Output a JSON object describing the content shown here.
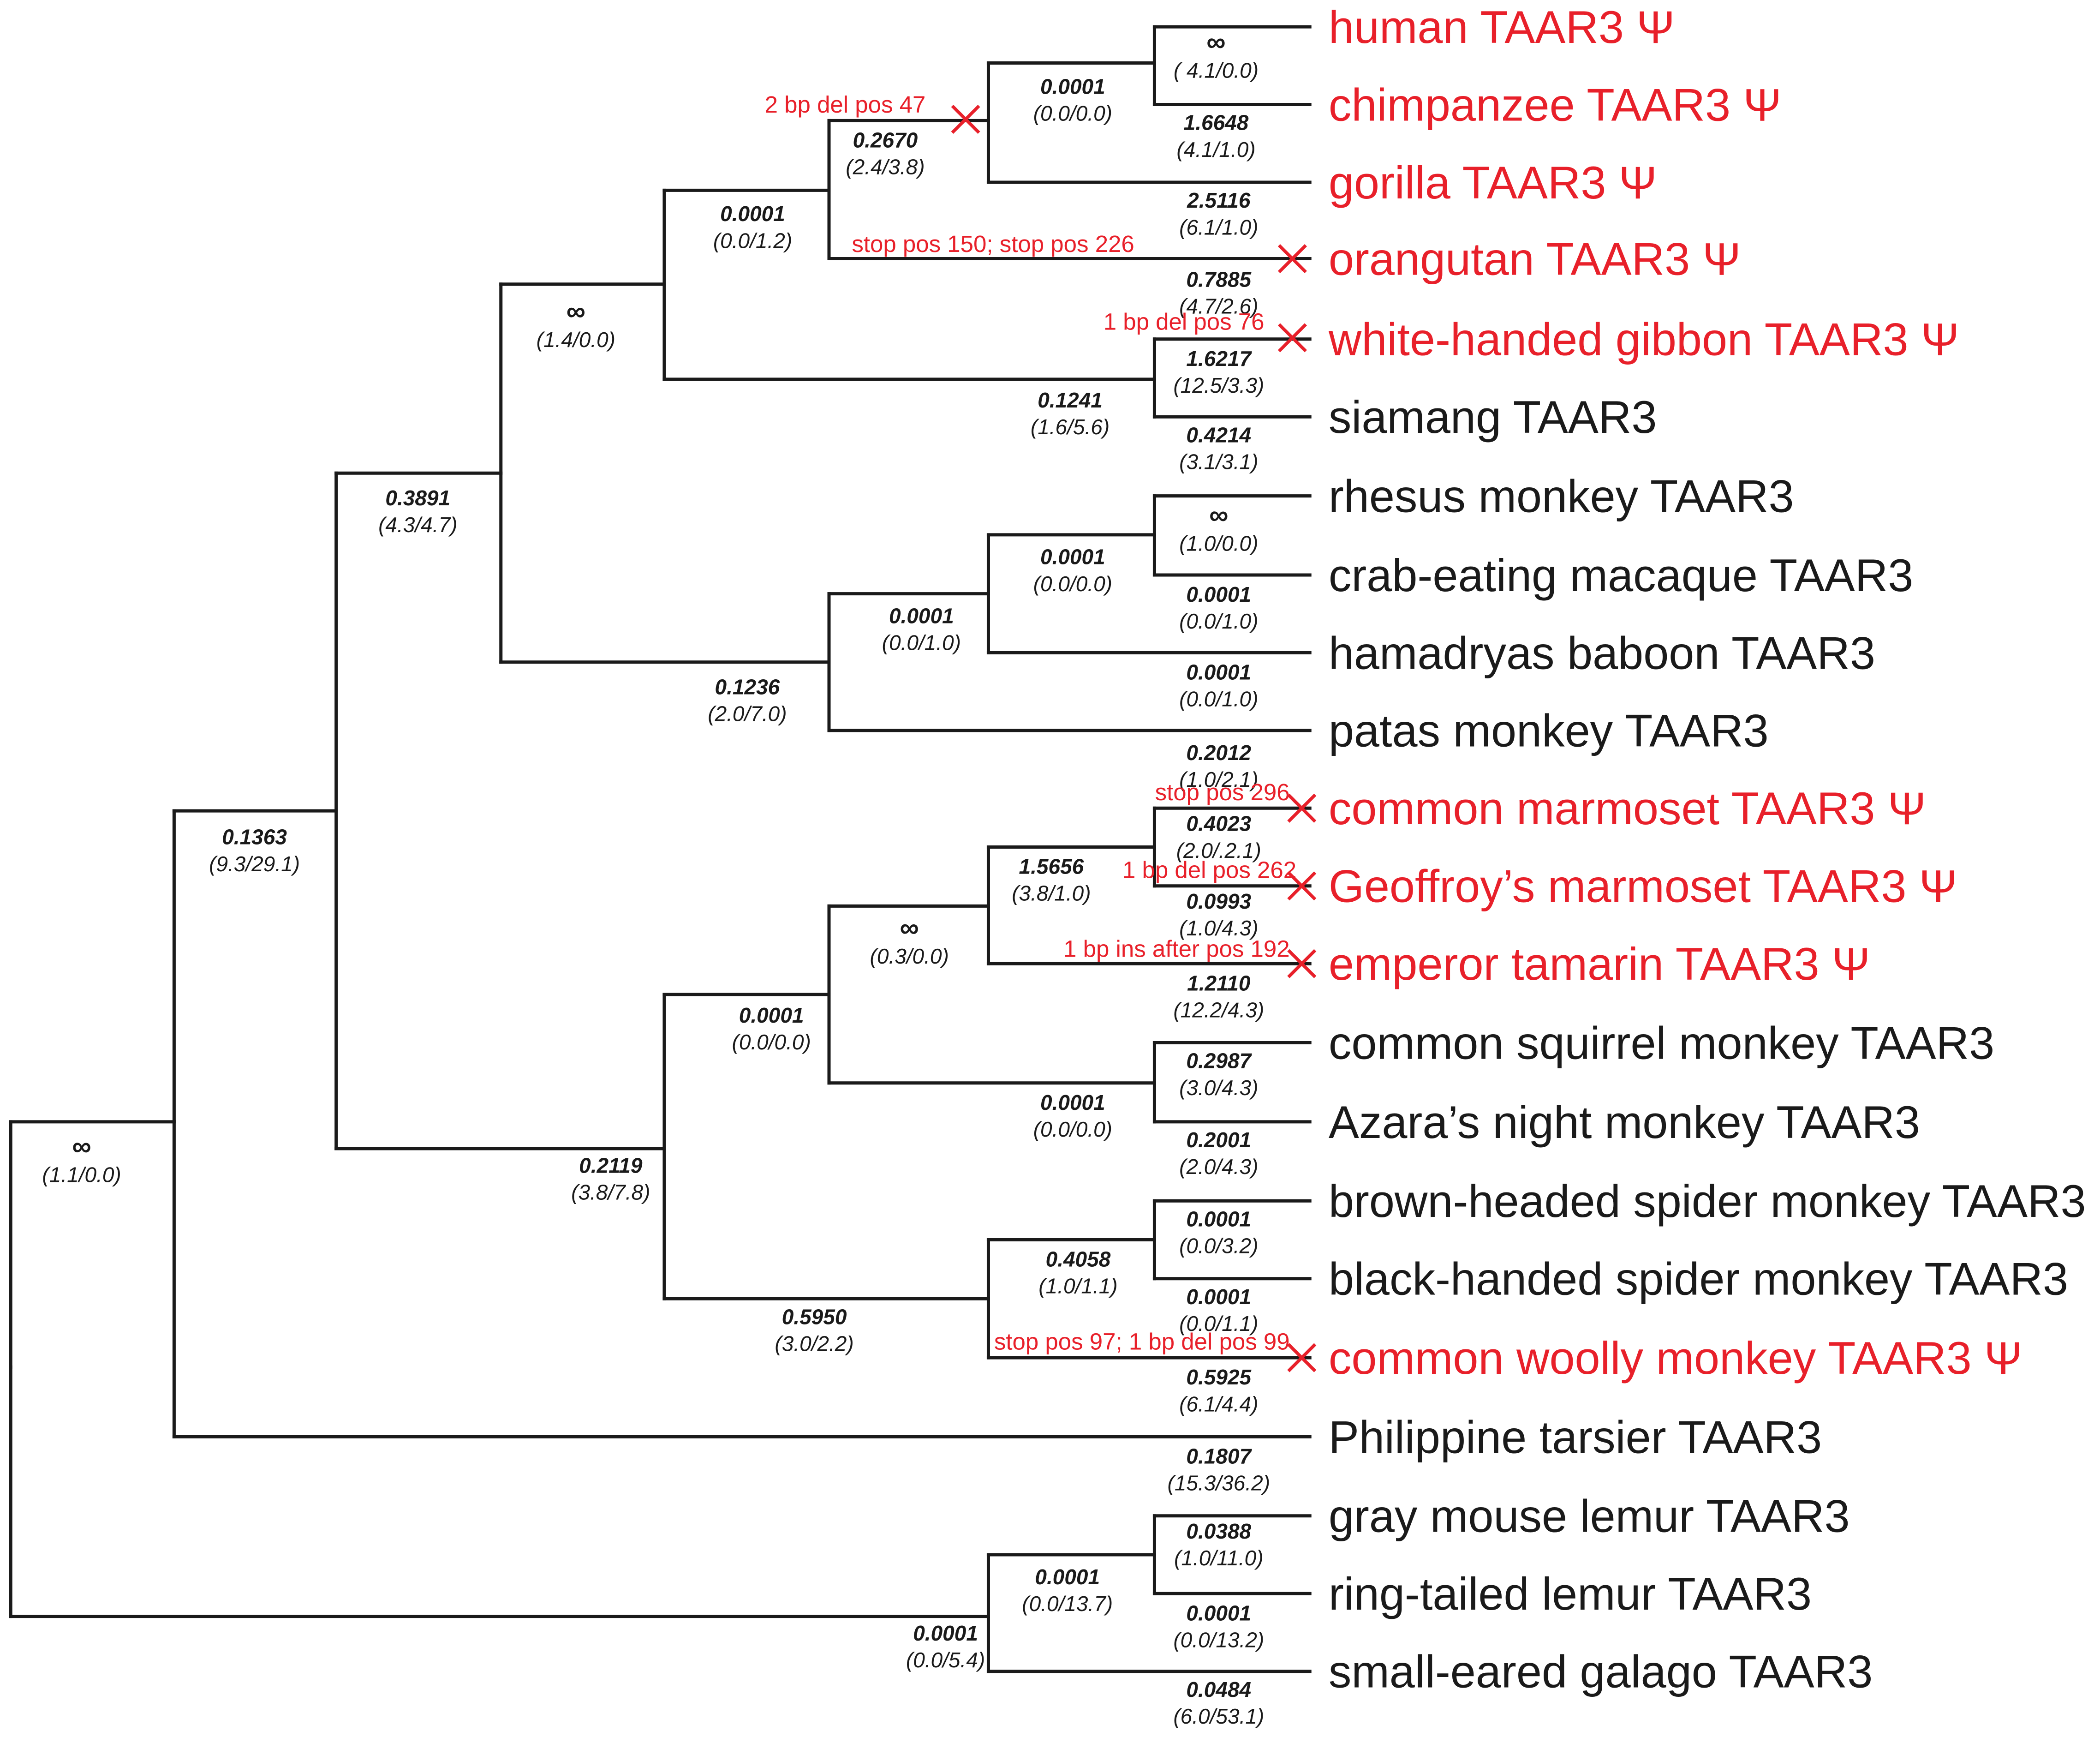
{
  "colors": {
    "branch": "#1a1a1a",
    "pseudogene": "#e8202a",
    "intact": "#1a1a1a"
  },
  "taxa": [
    {
      "id": "human",
      "label": "human TAAR3 Ψ",
      "pseudogene": true
    },
    {
      "id": "chimp",
      "label": "chimpanzee TAAR3 Ψ",
      "pseudogene": true
    },
    {
      "id": "gorilla",
      "label": "gorilla TAAR3 Ψ",
      "pseudogene": true
    },
    {
      "id": "orangutan",
      "label": "orangutan TAAR3 Ψ",
      "pseudogene": true
    },
    {
      "id": "gibbon",
      "label": "white-handed gibbon TAAR3 Ψ",
      "pseudogene": true
    },
    {
      "id": "siamang",
      "label": "siamang TAAR3",
      "pseudogene": false
    },
    {
      "id": "rhesus",
      "label": "rhesus monkey TAAR3",
      "pseudogene": false
    },
    {
      "id": "crab",
      "label": "crab-eating macaque TAAR3",
      "pseudogene": false
    },
    {
      "id": "baboon",
      "label": "hamadryas baboon TAAR3",
      "pseudogene": false
    },
    {
      "id": "patas",
      "label": "patas monkey TAAR3",
      "pseudogene": false
    },
    {
      "id": "marmoset",
      "label": "common marmoset TAAR3 Ψ",
      "pseudogene": true
    },
    {
      "id": "geoffroy",
      "label": "Geoffroy’s marmoset TAAR3 Ψ",
      "pseudogene": true
    },
    {
      "id": "emperor",
      "label": "emperor tamarin TAAR3 Ψ",
      "pseudogene": true
    },
    {
      "id": "squirrel",
      "label": "common squirrel monkey TAAR3",
      "pseudogene": false
    },
    {
      "id": "azara",
      "label": "Azara’s night monkey TAAR3",
      "pseudogene": false
    },
    {
      "id": "brownspider",
      "label": "brown-headed spider monkey TAAR3",
      "pseudogene": false
    },
    {
      "id": "blackspider",
      "label": "black-handed spider monkey TAAR3",
      "pseudogene": false
    },
    {
      "id": "woolly",
      "label": "common woolly monkey TAAR3 Ψ",
      "pseudogene": true
    },
    {
      "id": "tarsier",
      "label": "Philippine tarsier TAAR3",
      "pseudogene": false
    },
    {
      "id": "mouselemur",
      "label": "gray mouse lemur TAAR3",
      "pseudogene": false
    },
    {
      "id": "ringtail",
      "label": "ring-tailed lemur TAAR3",
      "pseudogene": false
    },
    {
      "id": "galago",
      "label": "small-eared galago TAAR3",
      "pseudogene": false
    }
  ],
  "branch_labels": [
    {
      "id": "human",
      "omega": "∞",
      "counts": "( 4.1/0.0)"
    },
    {
      "id": "chimp",
      "omega": "1.6648",
      "counts": "(4.1/1.0)"
    },
    {
      "id": "human_chimp",
      "omega": "0.0001",
      "counts": "(0.0/0.0)"
    },
    {
      "id": "hominine",
      "omega": "0.2670",
      "counts": "(2.4/3.8)"
    },
    {
      "id": "gorilla",
      "omega": "2.5116",
      "counts": "(6.1/1.0)"
    },
    {
      "id": "great_apes",
      "omega": "0.0001",
      "counts": "(0.0/1.2)"
    },
    {
      "id": "orangutan",
      "omega": "0.7885",
      "counts": "(4.7/2.6)"
    },
    {
      "id": "gibbon",
      "omega": "1.6217",
      "counts": "(12.5/3.3)"
    },
    {
      "id": "hylobatids",
      "omega": "0.1241",
      "counts": "(1.6/5.6)"
    },
    {
      "id": "siamang",
      "omega": "0.4214",
      "counts": "(3.1/3.1)"
    },
    {
      "id": "hominoids",
      "omega": "∞",
      "counts": "(1.4/0.0)"
    },
    {
      "id": "rhesus",
      "omega": "∞",
      "counts": "(1.0/0.0)"
    },
    {
      "id": "crab",
      "omega": "0.0001",
      "counts": "(0.0/1.0)"
    },
    {
      "id": "macaques",
      "omega": "0.0001",
      "counts": "(0.0/0.0)"
    },
    {
      "id": "baboon",
      "omega": "0.0001",
      "counts": "(0.0/1.0)"
    },
    {
      "id": "papionini",
      "omega": "0.0001",
      "counts": "(0.0/1.0)"
    },
    {
      "id": "cercopithecids",
      "omega": "0.1236",
      "counts": "(2.0/7.0)"
    },
    {
      "id": "patas",
      "omega": "0.2012",
      "counts": "(1.0/2.1)"
    },
    {
      "id": "catarrhines",
      "omega": "0.3891",
      "counts": "(4.3/4.7)"
    },
    {
      "id": "marmoset",
      "omega": "0.4023",
      "counts": "(2.0/.2.1)"
    },
    {
      "id": "marmosets",
      "omega": "1.5656",
      "counts": "(3.8/1.0)"
    },
    {
      "id": "geoffroy",
      "omega": "0.0993",
      "counts": "(1.0/4.3)"
    },
    {
      "id": "callitrichids",
      "omega": "∞",
      "counts": "(0.3/0.0)"
    },
    {
      "id": "emperor",
      "omega": "1.2110",
      "counts": "(12.2/4.3)"
    },
    {
      "id": "squirrel",
      "omega": "0.2987",
      "counts": "(3.0/4.3)"
    },
    {
      "id": "squirrel_azara",
      "omega": "0.0001",
      "counts": "(0.0/0.0)"
    },
    {
      "id": "azara",
      "omega": "0.2001",
      "counts": "(2.0/4.3)"
    },
    {
      "id": "cebids",
      "omega": "0.0001",
      "counts": "(0.0/0.0)"
    },
    {
      "id": "brownspider",
      "omega": "0.0001",
      "counts": "(0.0/3.2)"
    },
    {
      "id": "spiders",
      "omega": "0.4058",
      "counts": "(1.0/1.1)"
    },
    {
      "id": "blackspider",
      "omega": "0.0001",
      "counts": "(0.0/1.1)"
    },
    {
      "id": "atelids",
      "omega": "0.5950",
      "counts": "(3.0/2.2)"
    },
    {
      "id": "woolly",
      "omega": "0.5925",
      "counts": "(6.1/4.4)"
    },
    {
      "id": "platyrrhines",
      "omega": "0.2119",
      "counts": "(3.8/7.8)"
    },
    {
      "id": "anthropoids",
      "omega": "0.1363",
      "counts": "(9.3/29.1)"
    },
    {
      "id": "haplorhines",
      "omega": "∞",
      "counts": "(1.1/0.0)"
    },
    {
      "id": "tarsier",
      "omega": "0.1807",
      "counts": "(15.3/36.2)"
    },
    {
      "id": "mouselemur",
      "omega": "0.0388",
      "counts": "(1.0/11.0)"
    },
    {
      "id": "lemurs",
      "omega": "0.0001",
      "counts": "(0.0/13.7)"
    },
    {
      "id": "ringtail",
      "omega": "0.0001",
      "counts": "(0.0/13.2)"
    },
    {
      "id": "strepsirrhines",
      "omega": "0.0001",
      "counts": "(0.0/5.4)"
    },
    {
      "id": "galago",
      "omega": "0.0484",
      "counts": "(6.0/53.1)"
    }
  ],
  "mutations": [
    {
      "id": "hominine",
      "text": "2 bp del pos 47"
    },
    {
      "id": "orangutan",
      "text": "stop pos 150; stop pos 226"
    },
    {
      "id": "gibbon",
      "text": "1 bp del pos 76"
    },
    {
      "id": "marmoset",
      "text": "stop pos 296"
    },
    {
      "id": "geoffroy",
      "text": "1 bp del pos 262"
    },
    {
      "id": "emperor",
      "text": "1 bp ins after pos 192"
    },
    {
      "id": "woolly",
      "text": "stop pos 97; 1 bp del pos  99"
    }
  ]
}
